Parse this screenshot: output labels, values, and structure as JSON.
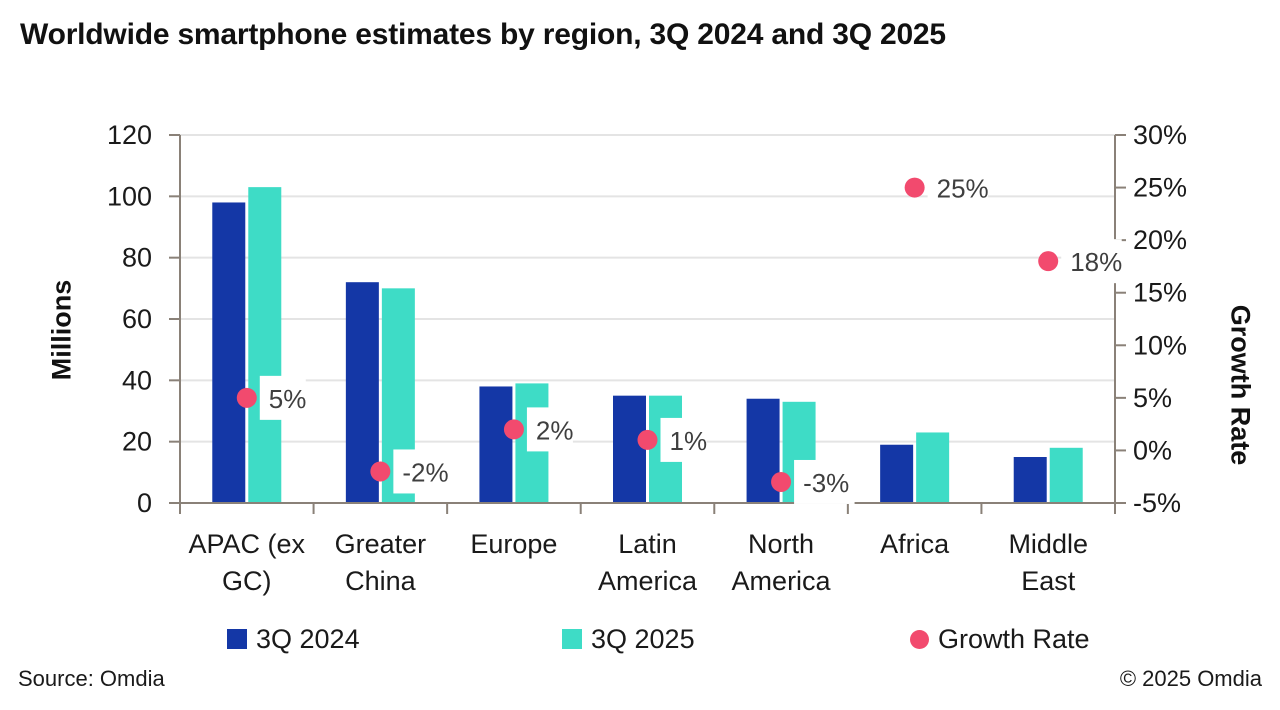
{
  "title": "Worldwide smartphone estimates by region, 3Q 2024 and 3Q 2025",
  "source_note": "Source: Omdia",
  "copyright_note": "© 2025 Omdia",
  "colors": {
    "bar_3q2024": "#1437A6",
    "bar_3q2025": "#3EDCC6",
    "growth_dot": "#F24A6E",
    "growth_label_text": "#3F3F3F",
    "growth_label_bg": "#FFFFFF",
    "axis_line": "#8A8178",
    "gridline": "#E4E4E4",
    "tick_text": "#1A1A1A"
  },
  "chart_data": {
    "type": "bar",
    "subtype": "grouped-bars-with-scatter-overlay",
    "categories": [
      "APAC (ex GC)",
      "Greater China",
      "Europe",
      "Latin America",
      "North America",
      "Africa",
      "Middle East"
    ],
    "category_lines": [
      [
        "APAC (ex",
        "GC)"
      ],
      [
        "Greater",
        "China"
      ],
      [
        "Europe"
      ],
      [
        "Latin",
        "America"
      ],
      [
        "North",
        "America"
      ],
      [
        "Africa"
      ],
      [
        "Middle",
        "East"
      ]
    ],
    "series": [
      {
        "name": "3Q 2024",
        "type": "bar",
        "axis": "left",
        "values": [
          98,
          72,
          38,
          35,
          34,
          19,
          15
        ]
      },
      {
        "name": "3Q 2025",
        "type": "bar",
        "axis": "left",
        "values": [
          103,
          70,
          39,
          35,
          33,
          23,
          18
        ]
      },
      {
        "name": "Growth Rate",
        "type": "scatter",
        "axis": "right",
        "values": [
          5,
          -2,
          2,
          1,
          -3,
          25,
          18
        ],
        "point_labels": [
          "5%",
          "-2%",
          "2%",
          "1%",
          "-3%",
          "25%",
          "18%"
        ]
      }
    ],
    "left_axis": {
      "title": "Millions",
      "min": 0,
      "max": 120,
      "step": 20,
      "tick_values": [
        0,
        20,
        40,
        60,
        80,
        100,
        120
      ],
      "tick_labels": [
        "0",
        "20",
        "40",
        "60",
        "80",
        "100",
        "120"
      ]
    },
    "right_axis": {
      "title": "Growth Rate",
      "min": -5,
      "max": 30,
      "step": 5,
      "tick_values": [
        30,
        25,
        20,
        15,
        10,
        5,
        0,
        -5
      ],
      "tick_labels": [
        "30%",
        "25%",
        "20%",
        "15%",
        "10%",
        "5%",
        "0%",
        "-5%"
      ]
    },
    "grid": "horizontal",
    "legend_position": "bottom"
  }
}
